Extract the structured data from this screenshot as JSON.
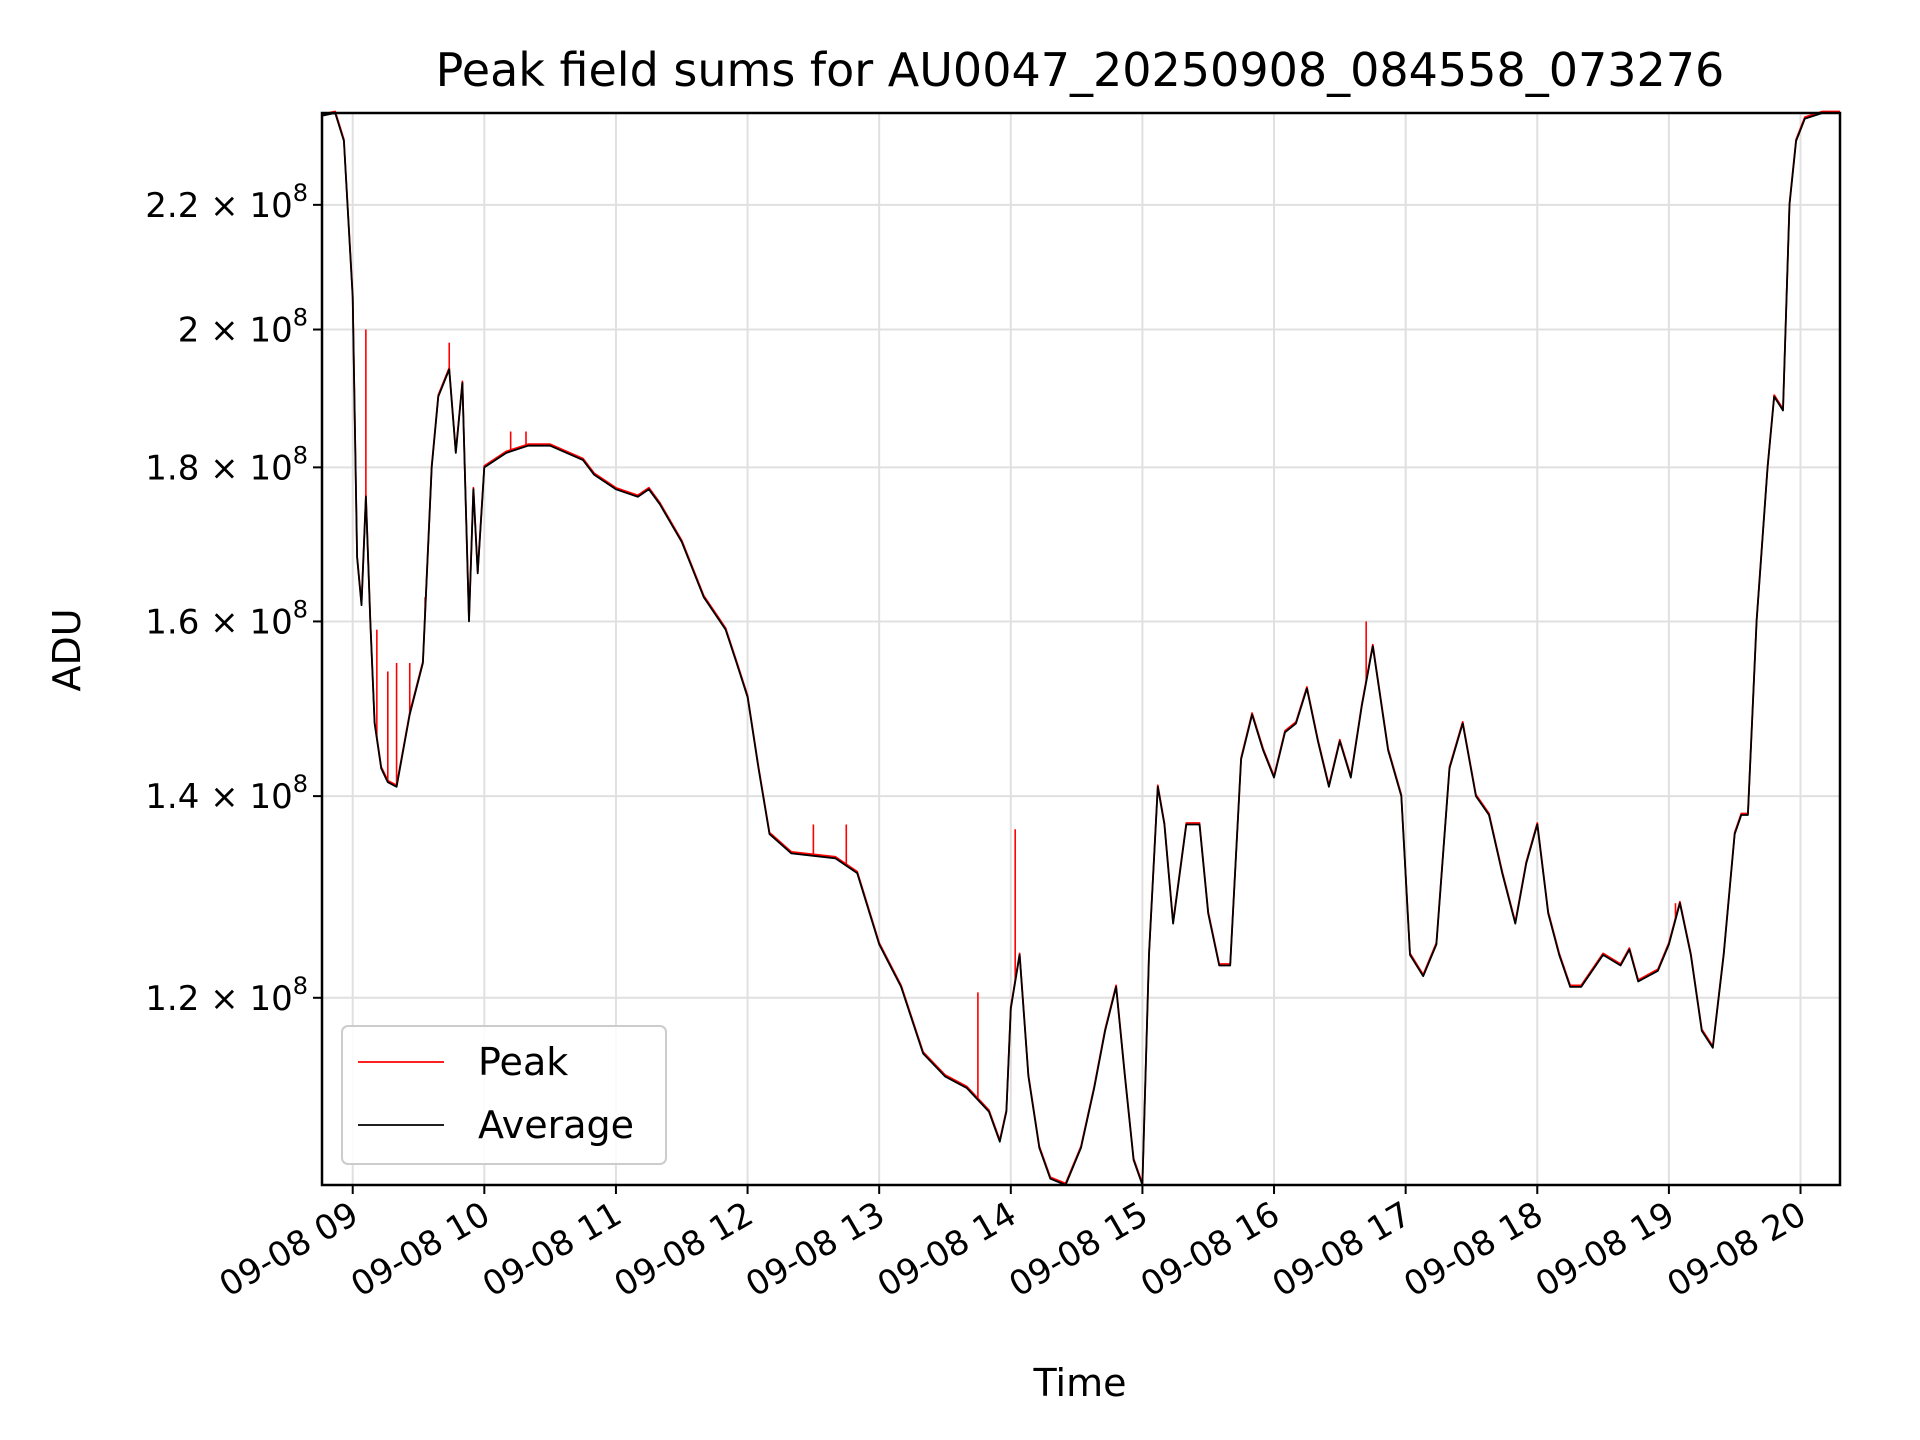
{
  "chart_data": {
    "type": "line",
    "title": "Peak field sums for AU0047_20250908_084558_073276",
    "xlabel": "Time",
    "ylabel": "ADU",
    "y_scale": "log",
    "ylim": [
      104000000,
      236000000
    ],
    "xlim": [
      "2025-09-08 08:46",
      "2025-09-08 20:18"
    ],
    "grid": true,
    "legend_position": "lower-left",
    "x_ticks": [
      {
        "t": "2025-09-08 09:00",
        "label": "09-08 09"
      },
      {
        "t": "2025-09-08 10:00",
        "label": "09-08 10"
      },
      {
        "t": "2025-09-08 11:00",
        "label": "09-08 11"
      },
      {
        "t": "2025-09-08 12:00",
        "label": "09-08 12"
      },
      {
        "t": "2025-09-08 13:00",
        "label": "09-08 13"
      },
      {
        "t": "2025-09-08 14:00",
        "label": "09-08 14"
      },
      {
        "t": "2025-09-08 15:00",
        "label": "09-08 15"
      },
      {
        "t": "2025-09-08 16:00",
        "label": "09-08 16"
      },
      {
        "t": "2025-09-08 17:00",
        "label": "09-08 17"
      },
      {
        "t": "2025-09-08 18:00",
        "label": "09-08 18"
      },
      {
        "t": "2025-09-08 19:00",
        "label": "09-08 19"
      },
      {
        "t": "2025-09-08 20:00",
        "label": "09-08 20"
      }
    ],
    "y_ticks": [
      {
        "value": 120000000,
        "mantissa": "1.2",
        "exp": "8"
      },
      {
        "value": 140000000,
        "mantissa": "1.4",
        "exp": "8"
      },
      {
        "value": 160000000,
        "mantissa": "1.6",
        "exp": "8"
      },
      {
        "value": 180000000,
        "mantissa": "1.8",
        "exp": "8"
      },
      {
        "value": 200000000,
        "mantissa": "2",
        "exp": "8"
      },
      {
        "value": 220000000,
        "mantissa": "2.2",
        "exp": "8"
      }
    ],
    "series": [
      {
        "name": "Peak",
        "color": "#ff0000",
        "spikes": [
          {
            "t": "2025-09-08 09:06",
            "y": 200000000
          },
          {
            "t": "2025-09-08 09:11",
            "y": 159000000
          },
          {
            "t": "2025-09-08 09:16",
            "y": 154000000
          },
          {
            "t": "2025-09-08 09:20",
            "y": 155000000
          },
          {
            "t": "2025-09-08 09:26",
            "y": 155000000
          },
          {
            "t": "2025-09-08 09:33",
            "y": 163000000
          },
          {
            "t": "2025-09-08 09:44",
            "y": 198000000
          },
          {
            "t": "2025-09-08 10:12",
            "y": 185000000
          },
          {
            "t": "2025-09-08 10:19",
            "y": 185000000
          },
          {
            "t": "2025-09-08 12:30",
            "y": 137000000
          },
          {
            "t": "2025-09-08 12:45",
            "y": 137000000
          },
          {
            "t": "2025-09-08 13:45",
            "y": 120500000
          },
          {
            "t": "2025-09-08 14:02",
            "y": 136500000
          },
          {
            "t": "2025-09-08 16:42",
            "y": 160000000
          },
          {
            "t": "2025-09-08 19:03",
            "y": 129000000
          }
        ]
      },
      {
        "name": "Average",
        "color": "#000000",
        "x": [
          "2025-09-08 08:46",
          "2025-09-08 08:52",
          "2025-09-08 08:56",
          "2025-09-08 09:00",
          "2025-09-08 09:02",
          "2025-09-08 09:04",
          "2025-09-08 09:06",
          "2025-09-08 09:08",
          "2025-09-08 09:10",
          "2025-09-08 09:13",
          "2025-09-08 09:16",
          "2025-09-08 09:20",
          "2025-09-08 09:26",
          "2025-09-08 09:32",
          "2025-09-08 09:36",
          "2025-09-08 09:39",
          "2025-09-08 09:44",
          "2025-09-08 09:47",
          "2025-09-08 09:50",
          "2025-09-08 09:53",
          "2025-09-08 09:55",
          "2025-09-08 09:57",
          "2025-09-08 10:00",
          "2025-09-08 10:10",
          "2025-09-08 10:20",
          "2025-09-08 10:30",
          "2025-09-08 10:45",
          "2025-09-08 10:50",
          "2025-09-08 11:00",
          "2025-09-08 11:10",
          "2025-09-08 11:15",
          "2025-09-08 11:20",
          "2025-09-08 11:30",
          "2025-09-08 11:40",
          "2025-09-08 11:50",
          "2025-09-08 11:55",
          "2025-09-08 12:00",
          "2025-09-08 12:05",
          "2025-09-08 12:10",
          "2025-09-08 12:20",
          "2025-09-08 12:40",
          "2025-09-08 12:50",
          "2025-09-08 13:00",
          "2025-09-08 13:10",
          "2025-09-08 13:20",
          "2025-09-08 13:30",
          "2025-09-08 13:40",
          "2025-09-08 13:50",
          "2025-09-08 13:55",
          "2025-09-08 13:58",
          "2025-09-08 14:00",
          "2025-09-08 14:04",
          "2025-09-08 14:08",
          "2025-09-08 14:13",
          "2025-09-08 14:18",
          "2025-09-08 14:25",
          "2025-09-08 14:32",
          "2025-09-08 14:38",
          "2025-09-08 14:43",
          "2025-09-08 14:48",
          "2025-09-08 14:52",
          "2025-09-08 14:56",
          "2025-09-08 15:00",
          "2025-09-08 15:03",
          "2025-09-08 15:07",
          "2025-09-08 15:10",
          "2025-09-08 15:14",
          "2025-09-08 15:20",
          "2025-09-08 15:26",
          "2025-09-08 15:30",
          "2025-09-08 15:35",
          "2025-09-08 15:40",
          "2025-09-08 15:45",
          "2025-09-08 15:50",
          "2025-09-08 15:55",
          "2025-09-08 16:00",
          "2025-09-08 16:05",
          "2025-09-08 16:10",
          "2025-09-08 16:15",
          "2025-09-08 16:20",
          "2025-09-08 16:25",
          "2025-09-08 16:30",
          "2025-09-08 16:35",
          "2025-09-08 16:40",
          "2025-09-08 16:45",
          "2025-09-08 16:52",
          "2025-09-08 16:58",
          "2025-09-08 17:02",
          "2025-09-08 17:08",
          "2025-09-08 17:14",
          "2025-09-08 17:20",
          "2025-09-08 17:26",
          "2025-09-08 17:32",
          "2025-09-08 17:38",
          "2025-09-08 17:44",
          "2025-09-08 17:50",
          "2025-09-08 17:55",
          "2025-09-08 18:00",
          "2025-09-08 18:05",
          "2025-09-08 18:10",
          "2025-09-08 18:15",
          "2025-09-08 18:20",
          "2025-09-08 18:30",
          "2025-09-08 18:38",
          "2025-09-08 18:42",
          "2025-09-08 18:46",
          "2025-09-08 18:55",
          "2025-09-08 19:00",
          "2025-09-08 19:05",
          "2025-09-08 19:10",
          "2025-09-08 19:15",
          "2025-09-08 19:20",
          "2025-09-08 19:25",
          "2025-09-08 19:30",
          "2025-09-08 19:33",
          "2025-09-08 19:36",
          "2025-09-08 19:40",
          "2025-09-08 19:45",
          "2025-09-08 19:48",
          "2025-09-08 19:52",
          "2025-09-08 19:55",
          "2025-09-08 19:58",
          "2025-09-08 20:02",
          "2025-09-08 20:10",
          "2025-09-08 20:18"
        ],
        "y": [
          235500000,
          236000000,
          231000000,
          205000000,
          168000000,
          162000000,
          176000000,
          160000000,
          148000000,
          143000000,
          141500000,
          141000000,
          149000000,
          155000000,
          180000000,
          190000000,
          194000000,
          182000000,
          192000000,
          160000000,
          177000000,
          166000000,
          180000000,
          182000000,
          183000000,
          183000000,
          181000000,
          179000000,
          177000000,
          176000000,
          177000000,
          175000000,
          170000000,
          163000000,
          159000000,
          155000000,
          151000000,
          143000000,
          136000000,
          134000000,
          133500000,
          132000000,
          125000000,
          121000000,
          115000000,
          113000000,
          112000000,
          110000000,
          107500000,
          110000000,
          119000000,
          124000000,
          113000000,
          107000000,
          104500000,
          104000000,
          107000000,
          112000000,
          117000000,
          121000000,
          113000000,
          106000000,
          104000000,
          124000000,
          141000000,
          137000000,
          127000000,
          137000000,
          137000000,
          128000000,
          123000000,
          123000000,
          144000000,
          149000000,
          145000000,
          142000000,
          147000000,
          148000000,
          152000000,
          146000000,
          141000000,
          146000000,
          142000000,
          150000000,
          157000000,
          145000000,
          140000000,
          124000000,
          122000000,
          125000000,
          143000000,
          148000000,
          140000000,
          138000000,
          132000000,
          127000000,
          133000000,
          137000000,
          128000000,
          124000000,
          121000000,
          121000000,
          124000000,
          123000000,
          124500000,
          121500000,
          122500000,
          125000000,
          129000000,
          124000000,
          117000000,
          115500000,
          124000000,
          136000000,
          138000000,
          138000000,
          160000000,
          180000000,
          190000000,
          188000000,
          220000000,
          231000000,
          235000000,
          236000000,
          236000000
        ]
      }
    ]
  },
  "legend": {
    "items": [
      {
        "label": "Peak",
        "color": "#ff0000"
      },
      {
        "label": "Average",
        "color": "#000000"
      }
    ]
  }
}
